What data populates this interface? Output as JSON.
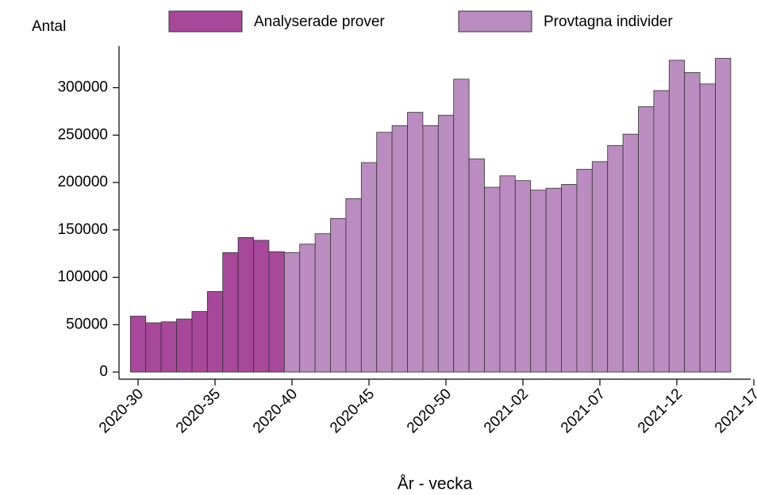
{
  "chart_data": {
    "type": "bar",
    "y_label": "Antal",
    "x_label": "År - vecka",
    "categories": [
      "2020-30",
      null,
      null,
      null,
      null,
      "2020-35",
      null,
      null,
      null,
      null,
      "2020-40",
      null,
      null,
      null,
      null,
      "2020-45",
      null,
      null,
      null,
      null,
      "2020-50",
      null,
      null,
      null,
      null,
      "2021-02",
      null,
      null,
      null,
      null,
      "2021-07",
      null,
      null,
      null,
      null,
      "2021-12",
      null,
      null,
      null,
      null,
      "2021-17"
    ],
    "series": [
      {
        "name": "Analyserade prover",
        "color": "#a8489a",
        "values": [
          59000,
          52000,
          53000,
          56000,
          64000,
          85000,
          126000,
          142000,
          139000,
          127000,
          null,
          null,
          null,
          null,
          null,
          null,
          null,
          null,
          null,
          null,
          null,
          null,
          null,
          null,
          null,
          null,
          null,
          null,
          null,
          null,
          null,
          null,
          null,
          null,
          null,
          null,
          null,
          null,
          null,
          null,
          null
        ]
      },
      {
        "name": "Provtagna individer",
        "color": "#bb8cc0",
        "values": [
          null,
          null,
          null,
          null,
          null,
          null,
          null,
          null,
          null,
          null,
          126000,
          135000,
          146000,
          162000,
          183000,
          221000,
          253000,
          260000,
          274000,
          260000,
          271000,
          309000,
          225000,
          195000,
          207000,
          202000,
          192000,
          194000,
          198000,
          214000,
          222000,
          239000,
          251000,
          280000,
          297000,
          329000,
          316000,
          304000,
          331000,
          null,
          null
        ]
      }
    ],
    "ylim": [
      -7500,
      344000
    ],
    "yticks": [
      0,
      50000,
      100000,
      150000,
      200000,
      250000,
      300000
    ]
  }
}
